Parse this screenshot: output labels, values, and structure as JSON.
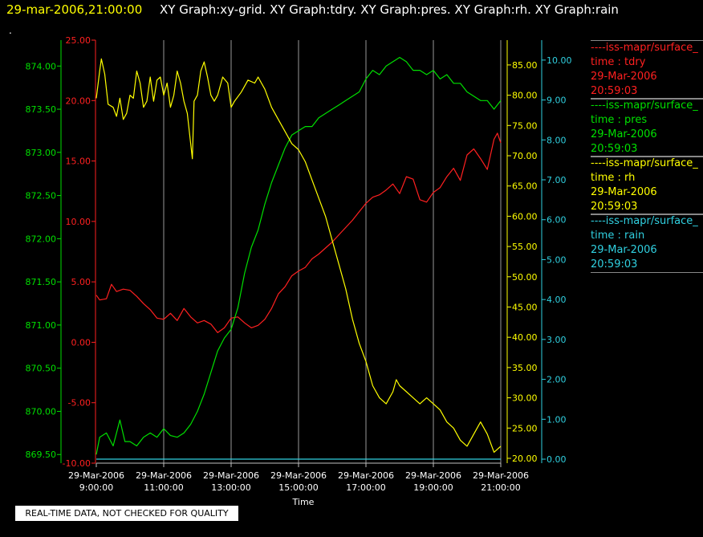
{
  "header": {
    "time_label": "29-mar-2006,21:00:00",
    "graphs_label": "XY Graph:xy-grid.  XY Graph:tdry.  XY Graph:pres.  XY Graph:rh.  XY Graph:rain",
    "dot": "."
  },
  "legend": [
    {
      "series": "----iss-mapr/surface_",
      "field": "time : tdry",
      "date": "29-Mar-2006",
      "time": "20:59:03",
      "color": "#ff2020"
    },
    {
      "series": "----iss-mapr/surface_",
      "field": "time : pres",
      "date": "29-Mar-2006",
      "time": "20:59:03",
      "color": "#00e000"
    },
    {
      "series": "----iss-mapr/surface_",
      "field": "time : rh",
      "date": "29-Mar-2006",
      "time": "20:59:03",
      "color": "#ffff00"
    },
    {
      "series": "----iss-mapr/surface_",
      "field": "time : rain",
      "date": "29-Mar-2006",
      "time": "20:59:03",
      "color": "#30d0e0"
    }
  ],
  "note": "REAL-TIME DATA, NOT CHECKED FOR QUALITY",
  "chart_data": {
    "type": "line",
    "xlabel": "Time",
    "x_ticks": [
      {
        "date": "29-Mar-2006",
        "time": "9:00:00",
        "hour": 9
      },
      {
        "date": "29-Mar-2006",
        "time": "11:00:00",
        "hour": 11
      },
      {
        "date": "29-Mar-2006",
        "time": "13:00:00",
        "hour": 13
      },
      {
        "date": "29-Mar-2006",
        "time": "15:00:00",
        "hour": 15
      },
      {
        "date": "29-Mar-2006",
        "time": "17:00:00",
        "hour": 17
      },
      {
        "date": "29-Mar-2006",
        "time": "19:00:00",
        "hour": 19
      },
      {
        "date": "29-Mar-2006",
        "time": "21:00:00",
        "hour": 21
      }
    ],
    "xlim": [
      9,
      21
    ],
    "grid": "vertical",
    "axes": {
      "pres": {
        "color": "#00e000",
        "ylim": [
          869.4,
          874.3
        ],
        "ticks": [
          "869.50",
          "870.00",
          "870.50",
          "871.00",
          "871.50",
          "872.00",
          "872.50",
          "873.00",
          "873.50",
          "874.00"
        ]
      },
      "tdry": {
        "color": "#ff2020",
        "ylim": [
          -10,
          25
        ],
        "ticks": [
          "-10.00",
          "-5.00",
          "0.00",
          "5.00",
          "10.00",
          "15.00",
          "20.00",
          "25.00"
        ]
      },
      "rh": {
        "color": "#ffff00",
        "ylim": [
          19.2,
          89.1
        ],
        "ticks": [
          "20.00",
          "25.00",
          "30.00",
          "35.00",
          "40.00",
          "45.00",
          "50.00",
          "55.00",
          "60.00",
          "65.00",
          "70.00",
          "75.00",
          "80.00",
          "85.00"
        ]
      },
      "rain": {
        "color": "#30d0e0",
        "ylim": [
          -0.1,
          10.5
        ],
        "ticks": [
          "0.00",
          "1.00",
          "2.00",
          "3.00",
          "4.00",
          "5.00",
          "6.00",
          "7.00",
          "8.00",
          "9.00",
          "10.00"
        ]
      }
    },
    "series": [
      {
        "name": "tdry",
        "axis": "tdry",
        "color": "#ff2020",
        "points": [
          [
            9.0,
            3.9
          ],
          [
            9.1,
            3.5
          ],
          [
            9.3,
            3.6
          ],
          [
            9.45,
            4.8
          ],
          [
            9.6,
            4.2
          ],
          [
            9.8,
            4.4
          ],
          [
            10.0,
            4.3
          ],
          [
            10.2,
            3.8
          ],
          [
            10.4,
            3.2
          ],
          [
            10.6,
            2.7
          ],
          [
            10.8,
            2.0
          ],
          [
            11.0,
            1.9
          ],
          [
            11.2,
            2.4
          ],
          [
            11.4,
            1.8
          ],
          [
            11.6,
            2.8
          ],
          [
            11.8,
            2.1
          ],
          [
            12.0,
            1.6
          ],
          [
            12.2,
            1.8
          ],
          [
            12.4,
            1.5
          ],
          [
            12.6,
            0.8
          ],
          [
            12.8,
            1.2
          ],
          [
            13.0,
            2.0
          ],
          [
            13.2,
            2.1
          ],
          [
            13.4,
            1.6
          ],
          [
            13.6,
            1.2
          ],
          [
            13.8,
            1.4
          ],
          [
            14.0,
            1.9
          ],
          [
            14.2,
            2.8
          ],
          [
            14.4,
            4.0
          ],
          [
            14.6,
            4.6
          ],
          [
            14.8,
            5.5
          ],
          [
            15.0,
            5.9
          ],
          [
            15.2,
            6.2
          ],
          [
            15.4,
            6.9
          ],
          [
            15.6,
            7.3
          ],
          [
            15.8,
            7.8
          ],
          [
            16.0,
            8.3
          ],
          [
            16.2,
            8.9
          ],
          [
            16.4,
            9.5
          ],
          [
            16.6,
            10.1
          ],
          [
            16.8,
            10.8
          ],
          [
            17.0,
            11.5
          ],
          [
            17.2,
            12.0
          ],
          [
            17.4,
            12.2
          ],
          [
            17.6,
            12.6
          ],
          [
            17.8,
            13.1
          ],
          [
            18.0,
            12.3
          ],
          [
            18.2,
            13.7
          ],
          [
            18.4,
            13.5
          ],
          [
            18.6,
            11.8
          ],
          [
            18.8,
            11.6
          ],
          [
            19.0,
            12.4
          ],
          [
            19.2,
            12.8
          ],
          [
            19.4,
            13.7
          ],
          [
            19.6,
            14.4
          ],
          [
            19.8,
            13.4
          ],
          [
            20.0,
            15.5
          ],
          [
            20.2,
            16.0
          ],
          [
            20.4,
            15.2
          ],
          [
            20.6,
            14.3
          ],
          [
            20.8,
            16.8
          ],
          [
            20.9,
            17.3
          ],
          [
            21.0,
            16.5
          ]
        ]
      },
      {
        "name": "pres",
        "axis": "pres",
        "color": "#00e000",
        "points": [
          [
            9.0,
            869.5
          ],
          [
            9.1,
            869.7
          ],
          [
            9.3,
            869.75
          ],
          [
            9.5,
            869.6
          ],
          [
            9.7,
            869.9
          ],
          [
            9.85,
            869.65
          ],
          [
            10.0,
            869.65
          ],
          [
            10.2,
            869.6
          ],
          [
            10.4,
            869.7
          ],
          [
            10.6,
            869.75
          ],
          [
            10.8,
            869.7
          ],
          [
            11.0,
            869.8
          ],
          [
            11.2,
            869.72
          ],
          [
            11.4,
            869.7
          ],
          [
            11.6,
            869.75
          ],
          [
            11.8,
            869.85
          ],
          [
            12.0,
            870.0
          ],
          [
            12.2,
            870.2
          ],
          [
            12.4,
            870.45
          ],
          [
            12.6,
            870.7
          ],
          [
            12.8,
            870.85
          ],
          [
            13.0,
            870.95
          ],
          [
            13.2,
            871.2
          ],
          [
            13.4,
            871.6
          ],
          [
            13.6,
            871.9
          ],
          [
            13.8,
            872.1
          ],
          [
            14.0,
            872.4
          ],
          [
            14.2,
            872.65
          ],
          [
            14.4,
            872.85
          ],
          [
            14.6,
            873.05
          ],
          [
            14.8,
            873.2
          ],
          [
            15.0,
            873.25
          ],
          [
            15.2,
            873.3
          ],
          [
            15.4,
            873.3
          ],
          [
            15.6,
            873.4
          ],
          [
            15.8,
            873.45
          ],
          [
            16.0,
            873.5
          ],
          [
            16.2,
            873.55
          ],
          [
            16.4,
            873.6
          ],
          [
            16.6,
            873.65
          ],
          [
            16.8,
            873.7
          ],
          [
            17.0,
            873.85
          ],
          [
            17.2,
            873.95
          ],
          [
            17.4,
            873.9
          ],
          [
            17.6,
            874.0
          ],
          [
            17.8,
            874.05
          ],
          [
            18.0,
            874.1
          ],
          [
            18.2,
            874.05
          ],
          [
            18.4,
            873.95
          ],
          [
            18.6,
            873.95
          ],
          [
            18.8,
            873.9
          ],
          [
            19.0,
            873.95
          ],
          [
            19.2,
            873.85
          ],
          [
            19.4,
            873.9
          ],
          [
            19.6,
            873.8
          ],
          [
            19.8,
            873.8
          ],
          [
            20.0,
            873.7
          ],
          [
            20.2,
            873.65
          ],
          [
            20.4,
            873.6
          ],
          [
            20.6,
            873.6
          ],
          [
            20.8,
            873.5
          ],
          [
            21.0,
            873.6
          ]
        ]
      },
      {
        "name": "rh",
        "axis": "rh",
        "color": "#ffff00",
        "points": [
          [
            9.0,
            79.5
          ],
          [
            9.1,
            84.0
          ],
          [
            9.15,
            86.0
          ],
          [
            9.25,
            83.5
          ],
          [
            9.35,
            78.5
          ],
          [
            9.5,
            78.0
          ],
          [
            9.6,
            76.5
          ],
          [
            9.7,
            79.5
          ],
          [
            9.8,
            76.0
          ],
          [
            9.9,
            77.0
          ],
          [
            10.0,
            80.0
          ],
          [
            10.1,
            79.5
          ],
          [
            10.2,
            84.0
          ],
          [
            10.3,
            82.0
          ],
          [
            10.4,
            78.0
          ],
          [
            10.5,
            79.0
          ],
          [
            10.6,
            83.0
          ],
          [
            10.7,
            79.0
          ],
          [
            10.8,
            82.5
          ],
          [
            10.9,
            83.0
          ],
          [
            11.0,
            80.0
          ],
          [
            11.1,
            82.0
          ],
          [
            11.2,
            78.0
          ],
          [
            11.3,
            80.0
          ],
          [
            11.4,
            84.0
          ],
          [
            11.5,
            82.0
          ],
          [
            11.6,
            79.0
          ],
          [
            11.7,
            77.0
          ],
          [
            11.8,
            72.0
          ],
          [
            11.85,
            69.5
          ],
          [
            11.9,
            79.0
          ],
          [
            12.0,
            80.0
          ],
          [
            12.1,
            84.0
          ],
          [
            12.2,
            85.5
          ],
          [
            12.3,
            83.0
          ],
          [
            12.4,
            80.0
          ],
          [
            12.5,
            79.0
          ],
          [
            12.6,
            80.0
          ],
          [
            12.75,
            83.0
          ],
          [
            12.9,
            82.0
          ],
          [
            13.0,
            78.0
          ],
          [
            13.1,
            79.0
          ],
          [
            13.3,
            80.5
          ],
          [
            13.5,
            82.5
          ],
          [
            13.7,
            82.0
          ],
          [
            13.8,
            83.0
          ],
          [
            14.0,
            81.0
          ],
          [
            14.2,
            78.0
          ],
          [
            14.4,
            76.0
          ],
          [
            14.6,
            74.0
          ],
          [
            14.8,
            72.0
          ],
          [
            15.0,
            71.0
          ],
          [
            15.2,
            69.0
          ],
          [
            15.4,
            66.0
          ],
          [
            15.6,
            63.0
          ],
          [
            15.8,
            60.0
          ],
          [
            16.0,
            56.0
          ],
          [
            16.2,
            52.0
          ],
          [
            16.4,
            48.0
          ],
          [
            16.6,
            43.0
          ],
          [
            16.8,
            39.0
          ],
          [
            17.0,
            36.0
          ],
          [
            17.2,
            32.0
          ],
          [
            17.4,
            30.0
          ],
          [
            17.6,
            29.0
          ],
          [
            17.8,
            31.0
          ],
          [
            17.9,
            33.0
          ],
          [
            18.0,
            32.0
          ],
          [
            18.2,
            31.0
          ],
          [
            18.4,
            30.0
          ],
          [
            18.6,
            29.0
          ],
          [
            18.8,
            30.0
          ],
          [
            19.0,
            29.0
          ],
          [
            19.2,
            28.0
          ],
          [
            19.4,
            26.0
          ],
          [
            19.6,
            25.0
          ],
          [
            19.8,
            23.0
          ],
          [
            20.0,
            22.0
          ],
          [
            20.2,
            24.0
          ],
          [
            20.4,
            26.0
          ],
          [
            20.6,
            24.0
          ],
          [
            20.8,
            21.0
          ],
          [
            21.0,
            22.0
          ]
        ]
      },
      {
        "name": "rain",
        "axis": "rain",
        "color": "#30d0e0",
        "points": [
          [
            9.0,
            0.0
          ],
          [
            21.0,
            0.0
          ]
        ]
      }
    ]
  }
}
